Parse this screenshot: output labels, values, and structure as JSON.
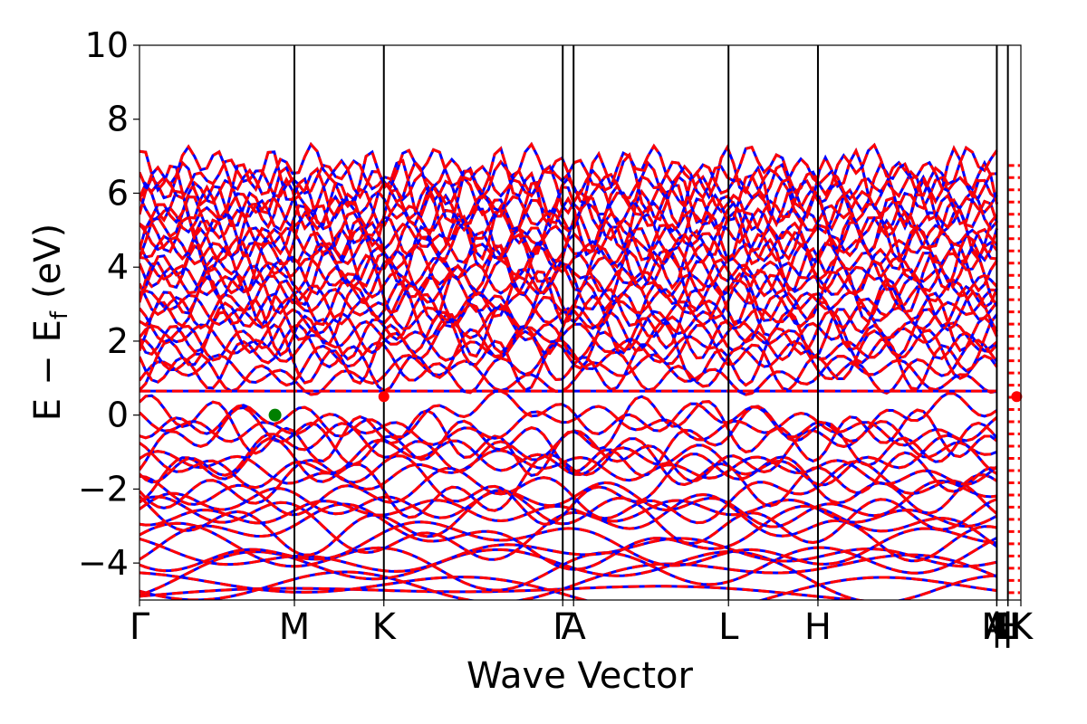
{
  "chart_data": {
    "type": "line",
    "title": "",
    "xlabel": "Wave Vector",
    "ylabel_parts": {
      "e": "E",
      "minus": "−",
      "ef_main": "E",
      "ef_sub": "f",
      "unit": "(eV)"
    },
    "ylim": [
      -5,
      10
    ],
    "yticks": [
      {
        "value": -4,
        "label": "−4"
      },
      {
        "value": -2,
        "label": "−2"
      },
      {
        "value": 0,
        "label": "0"
      },
      {
        "value": 2,
        "label": "2"
      },
      {
        "value": 4,
        "label": "4"
      },
      {
        "value": 6,
        "label": "6"
      },
      {
        "value": 8,
        "label": "8"
      },
      {
        "value": 10,
        "label": "10"
      }
    ],
    "xlim": [
      0,
      3.577
    ],
    "kpoints": [
      {
        "label": "Γ",
        "x": 0.0
      },
      {
        "label": "M",
        "x": 0.6287
      },
      {
        "label": "K",
        "x": 0.9917
      },
      {
        "label": "Γ",
        "x": 1.7177
      },
      {
        "label": "A",
        "x": 1.7617
      },
      {
        "label": "L",
        "x": 2.3904
      },
      {
        "label": "H",
        "x": 2.7534
      },
      {
        "label": "A",
        "x": 3.4794
      },
      {
        "label": "|",
        "x": 3.4794
      },
      {
        "label": "L",
        "x": 3.5243
      },
      {
        "label": "|",
        "x": 3.5243
      },
      {
        "label": "M",
        "x": 3.4794
      },
      {
        "label": "|",
        "x": 3.5243
      },
      {
        "label": "H",
        "x": 3.5243
      },
      {
        "label": "K",
        "x": 3.577
      }
    ],
    "series": [
      {
        "style": "solid",
        "color": "#0000ff"
      },
      {
        "style": "dashed",
        "color": "#ff0000"
      }
    ],
    "flat_band": 0.65,
    "vbm_marker": {
      "x": 0.55,
      "y": 0.0,
      "color": "#008000"
    },
    "cbm_markers": [
      {
        "x": 0.9917,
        "y": 0.5,
        "color": "#ff0000"
      },
      {
        "x": 3.56,
        "y": 0.5,
        "color": "#ff0000"
      }
    ],
    "colors": {
      "axes": "#000000",
      "kline": "#000000"
    }
  }
}
